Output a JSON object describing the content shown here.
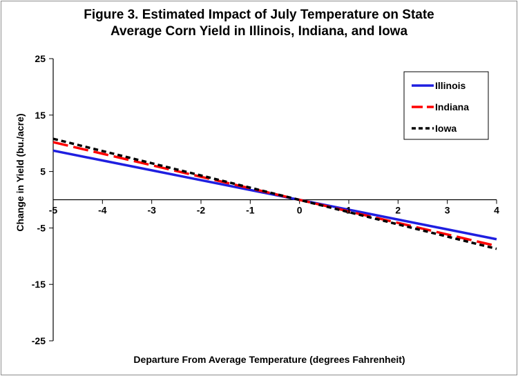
{
  "chart_data": {
    "type": "line",
    "title_line1": "Figure 3.  Estimated Impact of July Temperature on State",
    "title_line2": "Average Corn Yield in Illinois, Indiana, and Iowa",
    "xlabel": "Departure From Average Temperature (degrees Fahrenheit)",
    "ylabel": "Change in Yield (bu./acre)",
    "xlim": [
      -5,
      4
    ],
    "ylim": [
      -25,
      25
    ],
    "x_ticks": [
      -5,
      -4,
      -3,
      -2,
      -1,
      0,
      1,
      2,
      3,
      4
    ],
    "y_ticks": [
      25,
      15,
      5,
      -5,
      -15,
      -25
    ],
    "grid": false,
    "legend_position": "top-right",
    "series": [
      {
        "name": "Illinois",
        "color": "#1f1fe0",
        "dash": "solid",
        "x": [
          -5,
          4
        ],
        "y": [
          8.7,
          -7.0
        ]
      },
      {
        "name": "Indiana",
        "color": "#ff0000",
        "dash": "long-dash",
        "x": [
          -5,
          4
        ],
        "y": [
          10.2,
          -8.2
        ]
      },
      {
        "name": "Iowa",
        "color": "#000000",
        "dash": "short-dash",
        "x": [
          -5,
          4
        ],
        "y": [
          10.8,
          -8.7
        ]
      }
    ]
  }
}
